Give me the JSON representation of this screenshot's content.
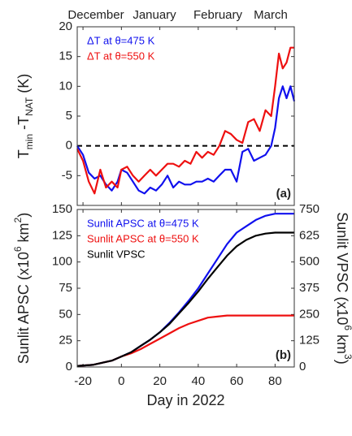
{
  "chart_data": [
    {
      "type": "line",
      "panel_label": "(a)",
      "month_labels": [
        "December",
        "January",
        "February",
        "March"
      ],
      "ylabel": [
        "T",
        "min",
        " -T",
        "NAT",
        " (K)"
      ],
      "x": [
        -23,
        -20,
        -17,
        -14,
        -11,
        -8,
        -5,
        -2,
        0,
        3,
        6,
        9,
        12,
        15,
        18,
        21,
        24,
        27,
        30,
        33,
        36,
        39,
        42,
        45,
        48,
        51,
        54,
        57,
        60,
        63,
        66,
        69,
        72,
        75,
        78,
        80,
        82,
        84,
        86,
        88,
        90
      ],
      "series": [
        {
          "name": "ΔT at θ=475 K",
          "color": "#1010ee",
          "values": [
            0,
            -1.5,
            -4.5,
            -5.5,
            -5,
            -6.5,
            -7.5,
            -6,
            -4,
            -4.5,
            -6,
            -7.5,
            -8,
            -7,
            -7.5,
            -6.5,
            -5,
            -7,
            -6,
            -6.5,
            -6.5,
            -6,
            -6,
            -5.5,
            -6,
            -5,
            -4,
            -4,
            -6,
            -1,
            -0.5,
            -2.5,
            -2,
            -1.5,
            0,
            3,
            8,
            10,
            8,
            10,
            7.5
          ]
        },
        {
          "name": "ΔT at θ=550 K",
          "color": "#ee1010",
          "values": [
            -0.5,
            -2.5,
            -6,
            -8,
            -4,
            -7,
            -6,
            -7,
            -4,
            -3.5,
            -5,
            -6,
            -5,
            -4,
            -5,
            -4,
            -3,
            -3,
            -3.5,
            -2.5,
            -3,
            -1,
            -2,
            -1,
            -1.5,
            0,
            2.5,
            2,
            1,
            0.5,
            4,
            4.5,
            2.5,
            6,
            5,
            10,
            15.5,
            13,
            14,
            16.5,
            16.5
          ]
        }
      ],
      "hline": 0,
      "xlim": [
        -23,
        90
      ],
      "xticks": [
        -20,
        0,
        20,
        40,
        60,
        80
      ],
      "ylim": [
        -10,
        20
      ],
      "yticks": [
        -5,
        0,
        5,
        10,
        15,
        20
      ]
    },
    {
      "type": "line",
      "panel_label": "(b)",
      "xlabel": "Day in 2022",
      "ylabel": [
        "Sunlit APSC (x10",
        "6",
        " km",
        "2",
        ")"
      ],
      "y2label": [
        "Sunlit VPSC (x10",
        "6",
        " km",
        "3",
        ")"
      ],
      "x": [
        -23,
        -15,
        -10,
        -5,
        0,
        5,
        10,
        15,
        20,
        25,
        30,
        35,
        40,
        45,
        50,
        55,
        60,
        65,
        70,
        75,
        80,
        85,
        90
      ],
      "series": [
        {
          "name": "Sunlit APSC at θ=475 K",
          "color": "#1010ee",
          "values": [
            1,
            2,
            4,
            6,
            10,
            14,
            20,
            26,
            33,
            42,
            52,
            63,
            75,
            89,
            103,
            117,
            128,
            134,
            140,
            144,
            146,
            146,
            146
          ]
        },
        {
          "name": "Sunlit APSC at θ=550 K",
          "color": "#ee1010",
          "values": [
            1,
            2,
            4,
            6,
            10,
            13,
            17,
            22,
            27,
            32,
            37,
            41,
            44,
            47,
            48,
            49,
            49,
            49,
            49,
            49,
            49,
            49,
            49
          ]
        },
        {
          "name": "Sunlit VPSC",
          "color": "#000000",
          "axis": "y2",
          "values": [
            5,
            10,
            20,
            30,
            50,
            70,
            100,
            130,
            165,
            205,
            255,
            305,
            360,
            420,
            475,
            530,
            575,
            605,
            625,
            635,
            640,
            640,
            640
          ]
        }
      ],
      "xlim": [
        -23,
        90
      ],
      "xticks": [
        -20,
        0,
        20,
        40,
        60,
        80
      ],
      "ylim": [
        0,
        150
      ],
      "yticks": [
        0,
        25,
        50,
        75,
        100,
        125,
        150
      ],
      "y2lim": [
        0,
        750
      ],
      "y2ticks": [
        0,
        125,
        250,
        375,
        500,
        625,
        750
      ]
    }
  ]
}
